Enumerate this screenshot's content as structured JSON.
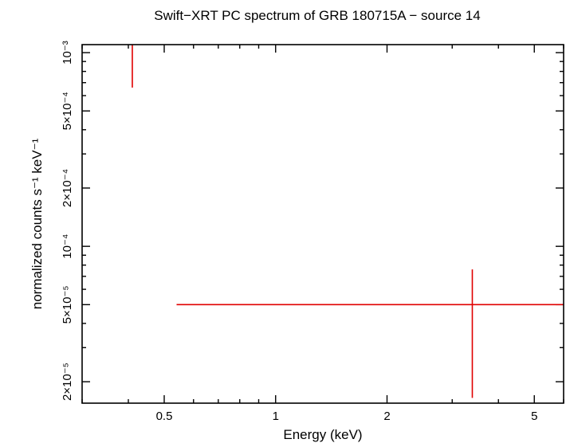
{
  "chart_data": {
    "type": "scatter",
    "title": "Swift−XRT PC spectrum of GRB 180715A − source 14",
    "xlabel": "Energy (keV)",
    "ylabel": "normalized counts s⁻¹ keV⁻¹",
    "xscale": "log",
    "yscale": "log",
    "xlim": [
      0.3,
      6
    ],
    "ylim": [
      1.55e-05,
      0.0011
    ],
    "x_ticks": [
      {
        "value": 0.5,
        "label": "0.5"
      },
      {
        "value": 1,
        "label": "1"
      },
      {
        "value": 2,
        "label": "2"
      },
      {
        "value": 5,
        "label": "5"
      }
    ],
    "y_ticks": [
      {
        "value": 2e-05,
        "label": "2×10⁻⁵"
      },
      {
        "value": 5e-05,
        "label": "5×10⁻⁵"
      },
      {
        "value": 0.0001,
        "label": "10⁻⁴"
      },
      {
        "value": 0.0002,
        "label": "2×10⁻⁴"
      },
      {
        "value": 0.0005,
        "label": "5×10⁻⁴"
      },
      {
        "value": 0.001,
        "label": "10⁻³"
      }
    ],
    "grid": false,
    "series": [
      {
        "color": "#e00000",
        "points": [
          {
            "x": 0.41,
            "xerr_low": 0.41,
            "xerr_high": 0.41,
            "y": 0.0011,
            "yerr_low": 0.00066,
            "yerr_high": 0.0011
          },
          {
            "x": 3.4,
            "xerr_low": 0.54,
            "xerr_high": 6.0,
            "y": 5e-05,
            "yerr_low": 1.65e-05,
            "yerr_high": 7.6e-05
          }
        ]
      }
    ]
  }
}
